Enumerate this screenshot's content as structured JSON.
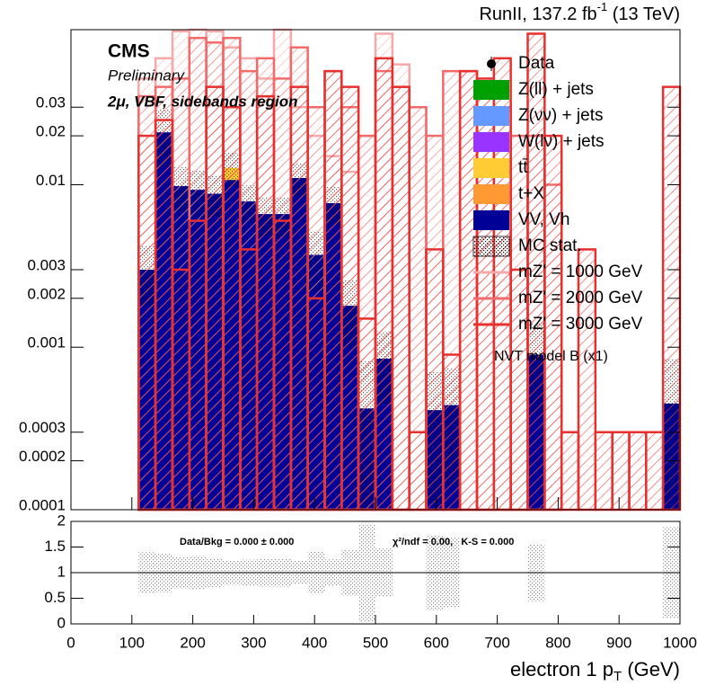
{
  "chart_data": {
    "type": "histogram",
    "header": {
      "text": "RunII, 137.2 fb",
      "sup": "-1",
      "suffix": "(13 TeV)"
    },
    "annotations": {
      "experiment": "CMS",
      "status": "Preliminary",
      "region": "2μ, VBF, sidebands region",
      "model": "NVT model B (x1)"
    },
    "bins": [
      0,
      27.8,
      55.6,
      83.3,
      111.1,
      138.9,
      166.7,
      194.4,
      222.2,
      250,
      277.8,
      305.6,
      333.3,
      361.1,
      388.9,
      416.7,
      444.4,
      472.2,
      500,
      527.8,
      555.6,
      583.3,
      611.1,
      638.9,
      666.7,
      694.4,
      722.2,
      750,
      777.8,
      805.6,
      833.3,
      861.1,
      888.9,
      916.7,
      944.4,
      972.2,
      1000
    ],
    "xlim": [
      0,
      1000
    ],
    "xticks": [
      0,
      100,
      200,
      300,
      400,
      500,
      600,
      700,
      800,
      900,
      1000
    ],
    "xlabel": {
      "text": "electron 1 p",
      "sub": "T",
      "suffix": "(GeV)"
    },
    "ylim": [
      0.0001,
      0.09
    ],
    "log_y": true,
    "yticks": [
      0.0001,
      0.0002,
      0.0003,
      0.001,
      0.002,
      0.003,
      0.01,
      0.02,
      0.03
    ],
    "data": {
      "name": "Data",
      "color": "#000000"
    },
    "series": [
      {
        "name": "Z(ll) + jets",
        "color": "#00a000",
        "values": [
          0,
          0,
          0,
          0,
          0,
          0,
          0,
          0,
          0,
          0,
          0,
          0,
          0,
          0,
          0,
          0,
          0,
          0,
          0,
          0,
          0,
          0,
          0,
          0,
          0,
          0,
          0,
          0,
          0,
          0,
          0,
          0,
          0,
          0,
          0,
          0
        ]
      },
      {
        "name": "Z(νν) + jets",
        "color": "#6699ff",
        "values": [
          0,
          0,
          0,
          0,
          0,
          0,
          0,
          0,
          0,
          0,
          0,
          0,
          0,
          0,
          0,
          0,
          0,
          0,
          0,
          0,
          0,
          0,
          0,
          0,
          0,
          0,
          0,
          0,
          0,
          0,
          0,
          0,
          0,
          0,
          0,
          0
        ]
      },
      {
        "name": "W(lν) + jets",
        "color": "#9933ff",
        "values": [
          0,
          0,
          0,
          0,
          0,
          0,
          0,
          0,
          0,
          0,
          0,
          0,
          0,
          0,
          0,
          0,
          0,
          0,
          0,
          0,
          0,
          0,
          0,
          0,
          0,
          0,
          0,
          0,
          0,
          0,
          0,
          0,
          0,
          0,
          0,
          0
        ]
      },
      {
        "name": "tt̄",
        "color": "#ffcc33",
        "values": [
          0,
          0,
          0,
          0,
          0,
          0,
          0,
          0,
          0,
          0.002,
          0,
          0,
          0,
          0,
          0,
          0,
          0,
          0,
          0,
          0,
          0,
          0,
          0,
          0,
          0,
          0,
          0,
          0,
          0,
          0,
          0,
          0,
          0,
          0,
          0,
          0
        ]
      },
      {
        "name": "t+X",
        "color": "#ff9933",
        "values": [
          0,
          0,
          0,
          0,
          0,
          0,
          0,
          0,
          0,
          0,
          0,
          0,
          0,
          0,
          0,
          0,
          0,
          0,
          0,
          0,
          0,
          0,
          0,
          0,
          0,
          0,
          0,
          0,
          0,
          0,
          0,
          0,
          0,
          0,
          0,
          0
        ]
      },
      {
        "name": "VV, Vh",
        "color": "#000099",
        "values": [
          0,
          0,
          0,
          0,
          0.003,
          0.021,
          0.0098,
          0.0093,
          0.0088,
          0.0107,
          0.0079,
          0.0066,
          0.0066,
          0.011,
          0.0037,
          0.0077,
          0.0018,
          0.00042,
          0.00085,
          0,
          0,
          0.00041,
          0.00044,
          0,
          0,
          0,
          0,
          0.0009,
          0,
          0,
          0,
          0,
          0,
          0,
          0,
          0.00045
        ]
      }
    ],
    "mc_stat": {
      "name": "MC stat.",
      "errors": [
        0,
        0,
        0,
        0,
        0.0012,
        0.008,
        0.003,
        0.003,
        0.0025,
        0.003,
        0.002,
        0.0018,
        0.0018,
        0.0025,
        0.0015,
        0.002,
        0.0008,
        0.0004,
        0.0004,
        0,
        0,
        0.0003,
        0.0003,
        0,
        0,
        0,
        0,
        0.0005,
        0,
        0,
        0,
        0,
        0,
        0,
        0,
        0.0004
      ]
    },
    "signals": [
      {
        "name": "mZ' = 1000 GeV",
        "color": "#f7a8a8",
        "values": [
          0,
          0,
          0,
          0,
          0.045,
          0.06,
          0.088,
          0.09,
          0.088,
          0.07,
          0.06,
          0.045,
          0.09,
          0.03,
          0.02,
          0.015,
          0.012,
          0.02,
          0.085,
          0.055,
          0.03,
          0,
          0,
          0,
          0,
          0,
          0,
          0,
          0,
          0,
          0,
          0,
          0,
          0,
          0,
          0
        ]
      },
      {
        "name": "mZ' = 2000 GeV",
        "color": "#f26b6b",
        "values": [
          0,
          0,
          0,
          0,
          0.035,
          0.04,
          0.045,
          0.08,
          0.075,
          0.08,
          0.05,
          0.06,
          0.045,
          0.07,
          0.03,
          0.05,
          0.03,
          0.02,
          0.05,
          0.04,
          0.03,
          0.02,
          0.05,
          0.05,
          0.04,
          0.03,
          0.02,
          0.02,
          0.01,
          0,
          0,
          0,
          0,
          0,
          0,
          0
        ]
      },
      {
        "name": "mZ' = 3000 GeV",
        "color": "#e8302e",
        "values": [
          0,
          0,
          0,
          0,
          0.02,
          0.025,
          0.003,
          0.006,
          0.04,
          0.03,
          0.004,
          0.035,
          0.006,
          0.04,
          0.002,
          0.05,
          0.04,
          0.0015,
          0.06,
          0.04,
          0.0003,
          0.004,
          0.0009,
          0.05,
          0.045,
          0.06,
          0.003,
          0.085,
          0.02,
          0.0003,
          0.004,
          0.0003,
          0.0003,
          0.0003,
          0.0003,
          0.04
        ]
      }
    ],
    "ratio": {
      "ylim": [
        0,
        2
      ],
      "yticks": [
        0,
        0.5,
        1,
        1.5,
        2
      ],
      "reference": 1,
      "text_left": "Data/Bkg = 0.000 ± 0.000",
      "text_right": "χ²/ndf = 0.00,   K-S = 0.000"
    }
  }
}
